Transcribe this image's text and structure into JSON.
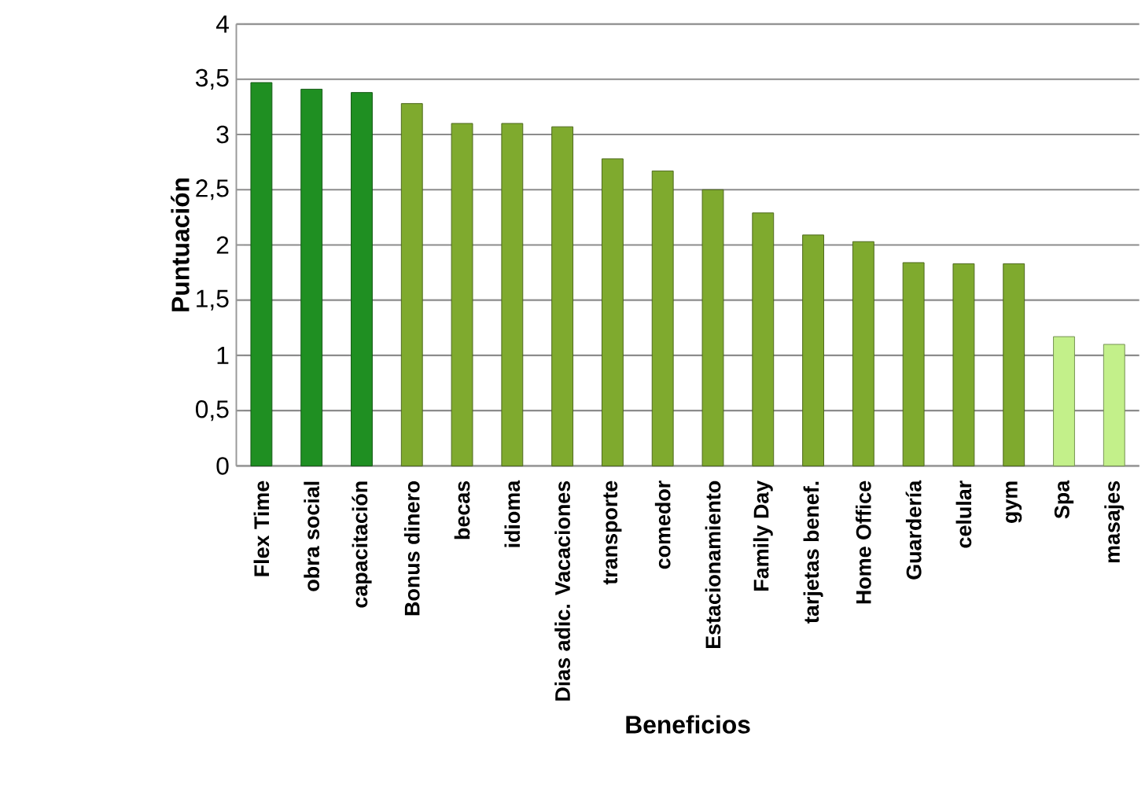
{
  "chart_data": {
    "type": "bar",
    "xlabel": "Beneficios",
    "ylabel": "Puntuación",
    "categories": [
      "Flex Time",
      "obra social",
      "capacitación",
      "Bonus dinero",
      "becas",
      "idioma",
      "Dias adic. Vacaciones",
      "transporte",
      "comedor",
      "Estacionamiento",
      "Family Day",
      "tarjetas benef.",
      "Home Office",
      "Guardería",
      "celular",
      "gym",
      "Spa",
      "masajes"
    ],
    "values": [
      3.47,
      3.41,
      3.38,
      3.28,
      3.1,
      3.1,
      3.07,
      2.78,
      2.67,
      2.5,
      2.29,
      2.09,
      2.03,
      1.84,
      1.83,
      1.83,
      1.17,
      1.1
    ],
    "colors": [
      "#1f8f22",
      "#1f8f22",
      "#1f8f22",
      "#7faa2e",
      "#7faa2e",
      "#7faa2e",
      "#7faa2e",
      "#7faa2e",
      "#7faa2e",
      "#7faa2e",
      "#7faa2e",
      "#7faa2e",
      "#7faa2e",
      "#7faa2e",
      "#7faa2e",
      "#7faa2e",
      "#c3f08a",
      "#c3f08a"
    ],
    "ylim": [
      0,
      4
    ],
    "yticks": [
      0,
      {
        "value": 0.5,
        "label": "0,5"
      },
      1,
      {
        "value": 1.5,
        "label": "1,5"
      },
      2,
      {
        "value": 2.5,
        "label": "2,5"
      },
      3,
      {
        "value": 3.5,
        "label": "3,5"
      },
      4
    ],
    "grid": "y"
  }
}
